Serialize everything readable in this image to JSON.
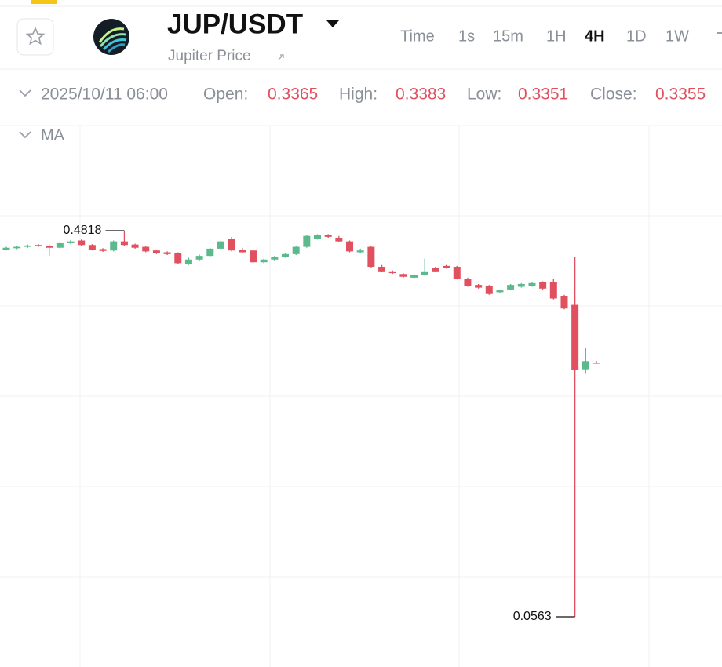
{
  "header": {
    "symbol": "JUP/USDT",
    "subtitle": "Jupiter Price",
    "intervals": [
      {
        "label": "Time",
        "active": false
      },
      {
        "label": "1s",
        "active": false
      },
      {
        "label": "15m",
        "active": false
      },
      {
        "label": "1H",
        "active": false
      },
      {
        "label": "4H",
        "active": true
      },
      {
        "label": "1D",
        "active": false
      },
      {
        "label": "1W",
        "active": false
      }
    ]
  },
  "info_bar": {
    "time": "2025/10/11 06:00",
    "open_label": "Open:",
    "high_label": "High:",
    "low_label": "Low:",
    "close_label": "Close:"
  },
  "indicator": "MA",
  "chart_data": {
    "type": "candlestick",
    "up_color": "#5bb98c",
    "down_color": "#e0505e",
    "grid": true,
    "open": [
      0.461,
      0.4625,
      0.464,
      0.466,
      0.465,
      0.463,
      0.468,
      0.471,
      0.466,
      0.4615,
      0.46,
      0.47,
      0.4665,
      0.464,
      0.46,
      0.458,
      0.457,
      0.445,
      0.45,
      0.454,
      0.462,
      0.473,
      0.461,
      0.46,
      0.447,
      0.45,
      0.453,
      0.456,
      0.464,
      0.473,
      0.477,
      0.474,
      0.47,
      0.458,
      0.464,
      0.442,
      0.437,
      0.434,
      0.43,
      0.433,
      0.441,
      0.443,
      0.442,
      0.429,
      0.422,
      0.421,
      0.414,
      0.417,
      0.42,
      0.421,
      0.425,
      0.425,
      0.41,
      0.4,
      0.329,
      0.3365
    ],
    "high": [
      0.464,
      0.465,
      0.4665,
      0.467,
      0.4665,
      0.469,
      0.4715,
      0.472,
      0.467,
      0.4625,
      0.471,
      0.4818,
      0.4675,
      0.465,
      0.461,
      0.459,
      0.458,
      0.452,
      0.4555,
      0.463,
      0.471,
      0.475,
      0.463,
      0.461,
      0.451,
      0.454,
      0.4575,
      0.465,
      0.477,
      0.478,
      0.478,
      0.476,
      0.471,
      0.462,
      0.465,
      0.444,
      0.438,
      0.435,
      0.434,
      0.451,
      0.442,
      0.444,
      0.443,
      0.43,
      0.423,
      0.422,
      0.417,
      0.423,
      0.424,
      0.425,
      0.426,
      0.429,
      0.411,
      0.453,
      0.352,
      0.3383
    ],
    "low": [
      0.46,
      0.4615,
      0.463,
      0.464,
      0.454,
      0.462,
      0.467,
      0.465,
      0.46,
      0.4585,
      0.459,
      0.465,
      0.462,
      0.458,
      0.456,
      0.455,
      0.445,
      0.444,
      0.449,
      0.453,
      0.461,
      0.459,
      0.457,
      0.446,
      0.446,
      0.449,
      0.452,
      0.455,
      0.463,
      0.472,
      0.474,
      0.469,
      0.458,
      0.457,
      0.441,
      0.436,
      0.434,
      0.43,
      0.429,
      0.432,
      0.436,
      0.44,
      0.428,
      0.42,
      0.418,
      0.411,
      0.413,
      0.416,
      0.419,
      0.42,
      0.417,
      0.406,
      0.395,
      0.0563,
      0.325,
      0.3351
    ],
    "close": [
      0.463,
      0.464,
      0.4655,
      0.4648,
      0.463,
      0.468,
      0.47,
      0.466,
      0.461,
      0.4595,
      0.47,
      0.466,
      0.463,
      0.459,
      0.457,
      0.456,
      0.446,
      0.45,
      0.454,
      0.462,
      0.47,
      0.46,
      0.458,
      0.447,
      0.45,
      0.453,
      0.456,
      0.464,
      0.476,
      0.477,
      0.475,
      0.47,
      0.459,
      0.46,
      0.442,
      0.437,
      0.435,
      0.431,
      0.433,
      0.437,
      0.437,
      0.441,
      0.429,
      0.421,
      0.419,
      0.412,
      0.416,
      0.422,
      0.423,
      0.424,
      0.418,
      0.407,
      0.396,
      0.328,
      0.338,
      0.3355
    ]
  }
}
